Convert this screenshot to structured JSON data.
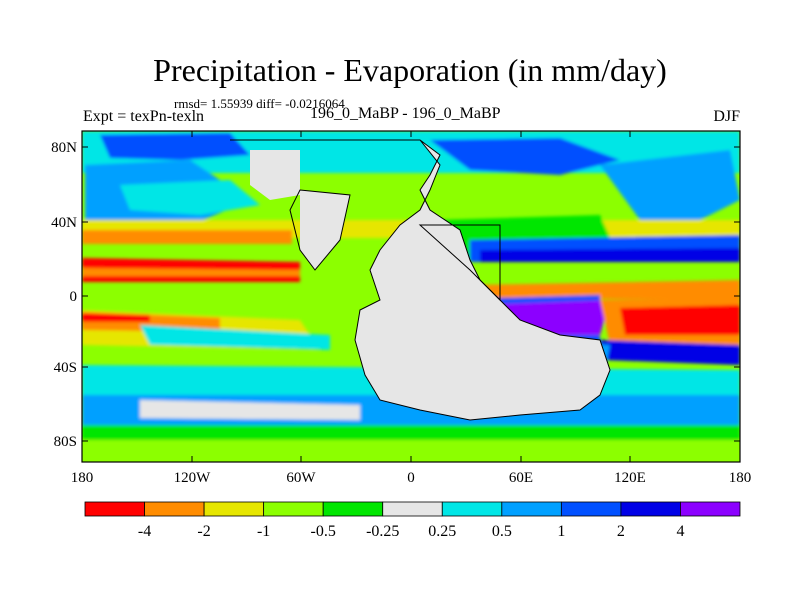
{
  "title": "Precipitation - Evaporation (in mm/day)",
  "stats": "rmsd= 1.55939 diff= -0.0216064",
  "experiment": "Expt = texPn-texln",
  "runs": "196_0_MaBP - 196_0_MaBP",
  "season": "DJF",
  "colors": {
    "c1": "#ff0000",
    "c2": "#ff8c00",
    "c3": "#e6e600",
    "c4": "#8cff00",
    "c5": "#00e600",
    "c6": "#e6e6e6",
    "c7": "#00e6e6",
    "c8": "#00a0ff",
    "c9": "#0050ff",
    "c10": "#0000e6",
    "c11": "#8c00ff"
  },
  "lat_ticks": [
    "80N",
    "40N",
    "0",
    "40S",
    "80S"
  ],
  "lon_ticks": [
    "180",
    "120W",
    "60W",
    "0",
    "60E",
    "120E",
    "180"
  ],
  "colorbar": {
    "colors": [
      "#ff0000",
      "#ff8c00",
      "#e6e600",
      "#8cff00",
      "#00e600",
      "#e6e6e6",
      "#00e6e6",
      "#00a0ff",
      "#0050ff",
      "#0000e6",
      "#8c00ff"
    ],
    "labels": [
      "-4",
      "-2",
      "-1",
      "-0.5",
      "-0.25",
      "0.25",
      "0.5",
      "1",
      "2",
      "4"
    ]
  }
}
